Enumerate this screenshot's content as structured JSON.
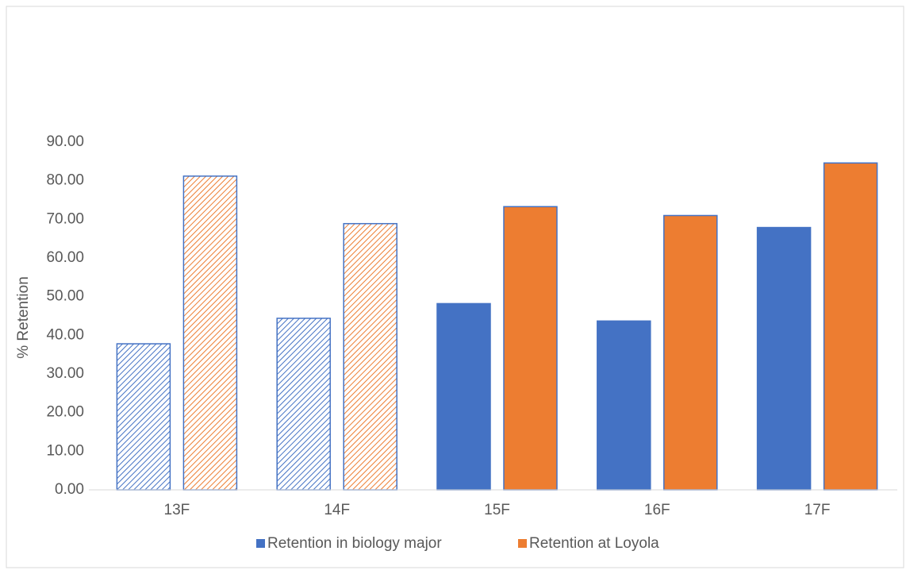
{
  "chart_data": {
    "type": "bar",
    "ylabel": "% Retention",
    "categories": [
      "13F",
      "14F",
      "15F",
      "16F",
      "17F"
    ],
    "series": [
      {
        "name": "Retention in biology major",
        "color": "#4472c4",
        "values": [
          37.8,
          44.4,
          48.2,
          43.7,
          67.9
        ]
      },
      {
        "name": "Retention at Loyola",
        "color": "#ed7d31",
        "values": [
          81.2,
          68.9,
          73.3,
          71.0,
          84.6
        ]
      }
    ],
    "fill_pattern": [
      "hatch",
      "hatch",
      "solid",
      "solid",
      "solid"
    ],
    "edgecolor": "#4472c4",
    "ylim": [
      0,
      90
    ],
    "yticks": [
      {
        "value": 0,
        "label": "0.00"
      },
      {
        "value": 10,
        "label": "10.00"
      },
      {
        "value": 20,
        "label": "20.00"
      },
      {
        "value": 30,
        "label": "30.00"
      },
      {
        "value": 40,
        "label": "40.00"
      },
      {
        "value": 50,
        "label": "50.00"
      },
      {
        "value": 60,
        "label": "60.00"
      },
      {
        "value": 70,
        "label": "70.00"
      },
      {
        "value": 80,
        "label": "80.00"
      },
      {
        "value": 90,
        "label": "90.00"
      }
    ],
    "grid": false,
    "legend": "bottom"
  }
}
